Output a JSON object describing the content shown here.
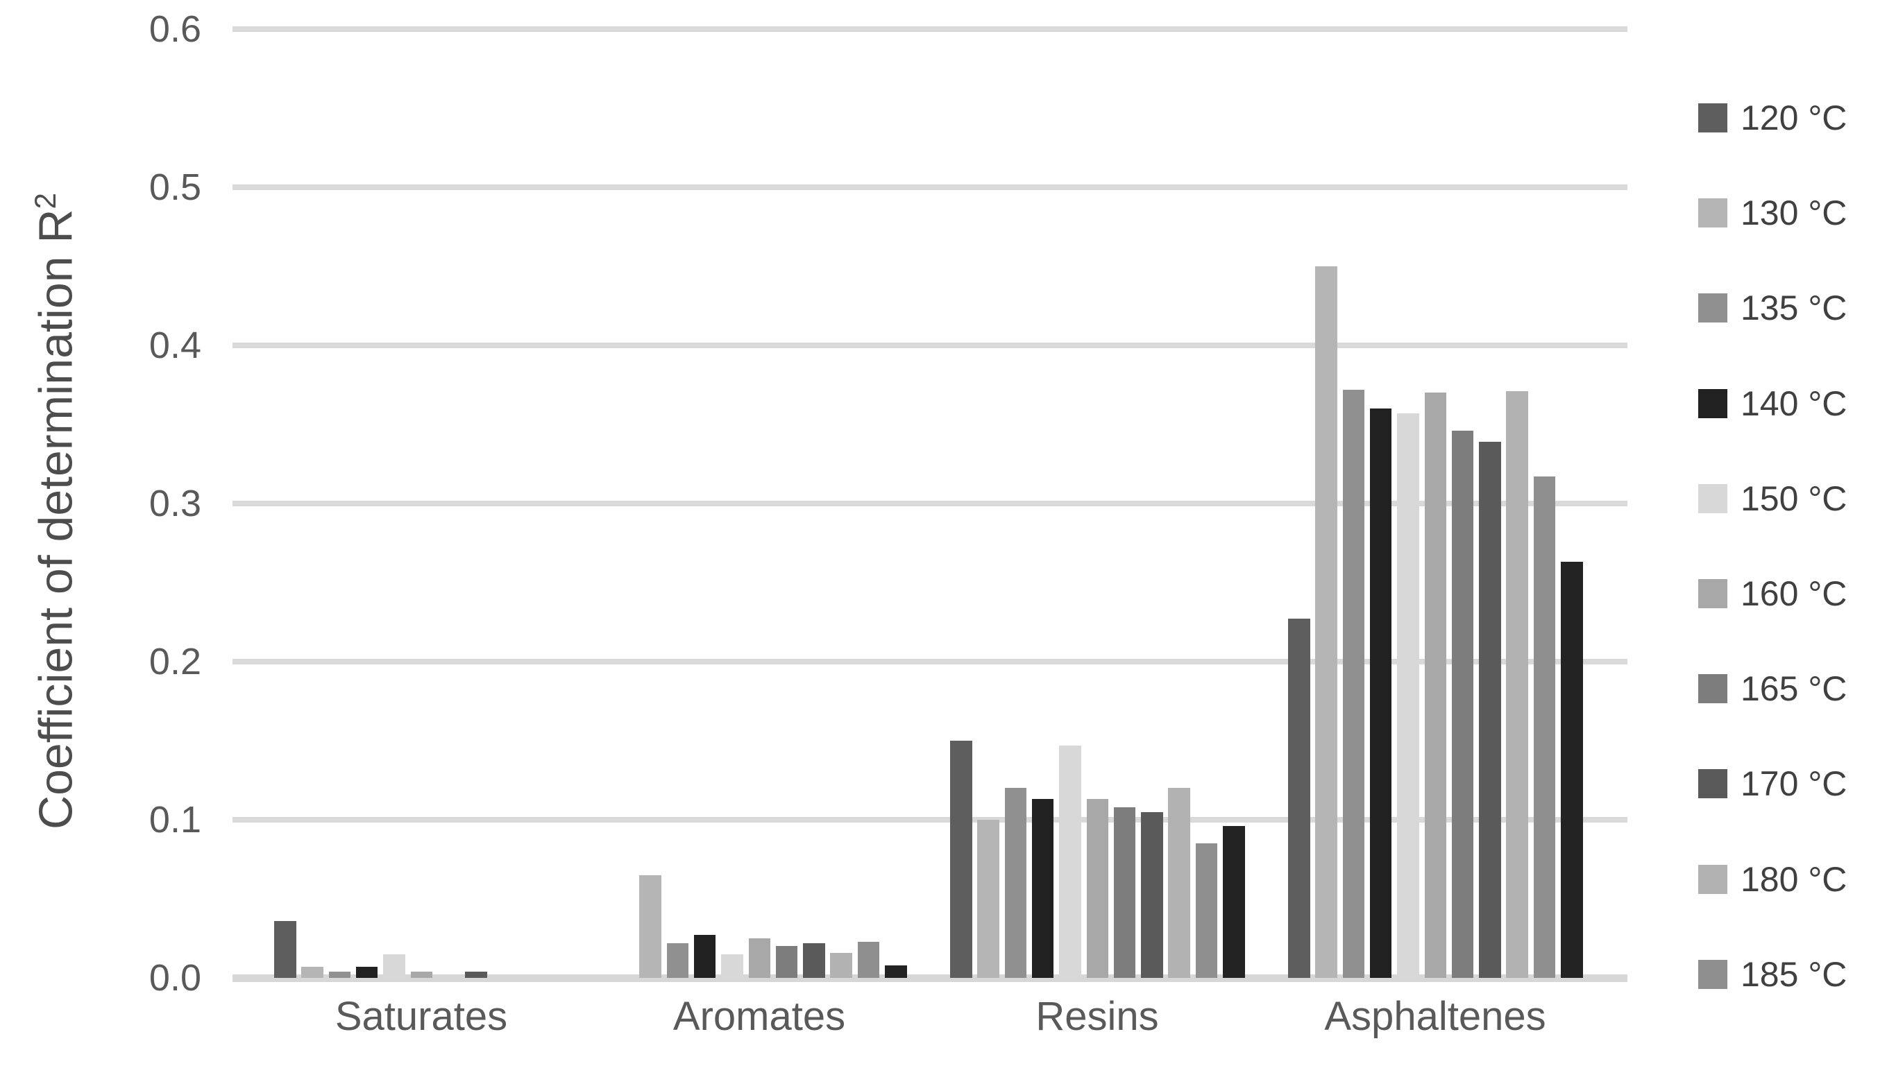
{
  "figure": {
    "ylabel_main": "Coefficient of determination R",
    "ylabel_sup": "2"
  },
  "chart_data": {
    "type": "bar",
    "title": "",
    "xlabel": "",
    "ylabel": "Coefficient of determination R²",
    "categories": [
      "Saturates",
      "Aromates",
      "Resins",
      "Asphaltenes"
    ],
    "ylim": [
      0,
      0.6
    ],
    "yticks": [
      {
        "value": 0.0,
        "label": "0.0"
      },
      {
        "value": 0.1,
        "label": "0.1"
      },
      {
        "value": 0.2,
        "label": "0.2"
      },
      {
        "value": 0.3,
        "label": "0.3"
      },
      {
        "value": 0.4,
        "label": "0.4"
      },
      {
        "value": 0.5,
        "label": "0.5"
      },
      {
        "value": 0.6,
        "label": "0.6"
      }
    ],
    "grid": true,
    "legend_position": "right",
    "legend": [
      "120 °C",
      "130 °C",
      "135 °C",
      "140 °C",
      "150 °C",
      "160 °C",
      "165 °C",
      "170 °C",
      "180 °C",
      "185 °C"
    ],
    "series": [
      {
        "name": "120 °C",
        "color": "#5e5e5e",
        "in_legend": true,
        "values": [
          0.036,
          0,
          0.15,
          0.227
        ]
      },
      {
        "name": "130 °C",
        "color": "#b5b5b5",
        "in_legend": true,
        "values": [
          0.007,
          0.065,
          0.1,
          0.45
        ]
      },
      {
        "name": "135 °C",
        "color": "#909090",
        "in_legend": true,
        "values": [
          0.004,
          0.022,
          0.12,
          0.372
        ]
      },
      {
        "name": "140 °C",
        "color": "#212121",
        "in_legend": true,
        "values": [
          0.007,
          0.027,
          0.113,
          0.36
        ]
      },
      {
        "name": "150 °C",
        "color": "#d8d8d8",
        "in_legend": true,
        "values": [
          0.015,
          0.015,
          0.147,
          0.357
        ]
      },
      {
        "name": "160 °C",
        "color": "#a8a8a8",
        "in_legend": true,
        "values": [
          0.004,
          0.025,
          0.113,
          0.37
        ]
      },
      {
        "name": "165 °C",
        "color": "#7d7d7d",
        "in_legend": true,
        "values": [
          0,
          0.02,
          0.108,
          0.346
        ]
      },
      {
        "name": "170 °C",
        "color": "#5a5a5a",
        "in_legend": true,
        "values": [
          0.004,
          0.022,
          0.105,
          0.339
        ]
      },
      {
        "name": "180 °C",
        "color": "#b2b2b2",
        "in_legend": true,
        "values": [
          0,
          0.016,
          0.12,
          0.371
        ]
      },
      {
        "name": "185 °C",
        "color": "#8f8f8f",
        "in_legend": true,
        "values": [
          0,
          0.023,
          0.085,
          0.317
        ]
      },
      {
        "name": "",
        "color": "#232323",
        "in_legend": false,
        "values": [
          0,
          0.008,
          0.096,
          0.263
        ]
      }
    ]
  }
}
